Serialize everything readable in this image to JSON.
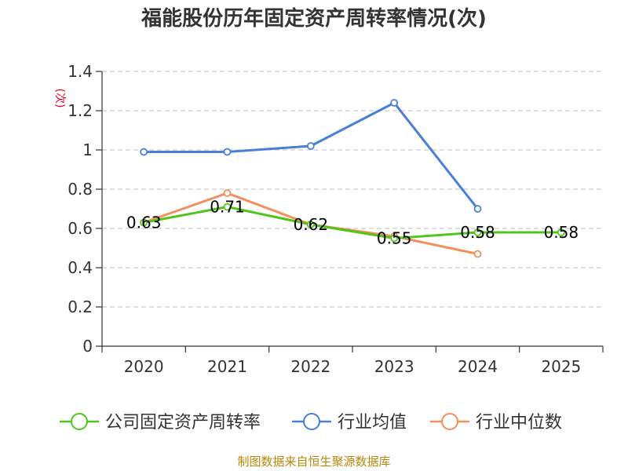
{
  "chart_data": {
    "type": "line",
    "title": "福能股份历年固定资产周转率情况(次)",
    "ylabel": "(次)",
    "xlabel": "",
    "categories": [
      "2020",
      "2021",
      "2022",
      "2023",
      "2024",
      "2025"
    ],
    "ylim": [
      0,
      1.4
    ],
    "yticks": [
      "0",
      "0.2",
      "0.4",
      "0.6",
      "0.8",
      "1",
      "1.2",
      "1.4"
    ],
    "grid": true,
    "legend_position": "bottom",
    "series": [
      {
        "name": "公司固定资产周转率",
        "color": "#52c41a",
        "values": [
          0.63,
          0.71,
          0.62,
          0.55,
          0.58,
          0.58
        ],
        "labels": [
          "0.63",
          "0.71",
          "0.62",
          "0.55",
          "0.58",
          "0.58"
        ]
      },
      {
        "name": "行业均值",
        "color": "#4a7fd6",
        "values": [
          0.99,
          0.99,
          1.02,
          1.24,
          0.7,
          null
        ]
      },
      {
        "name": "行业中位数",
        "color": "#f28f5a",
        "values": [
          0.63,
          0.78,
          0.62,
          0.56,
          0.47,
          null
        ]
      }
    ],
    "source": "制图数据来自恒生聚源数据库"
  }
}
